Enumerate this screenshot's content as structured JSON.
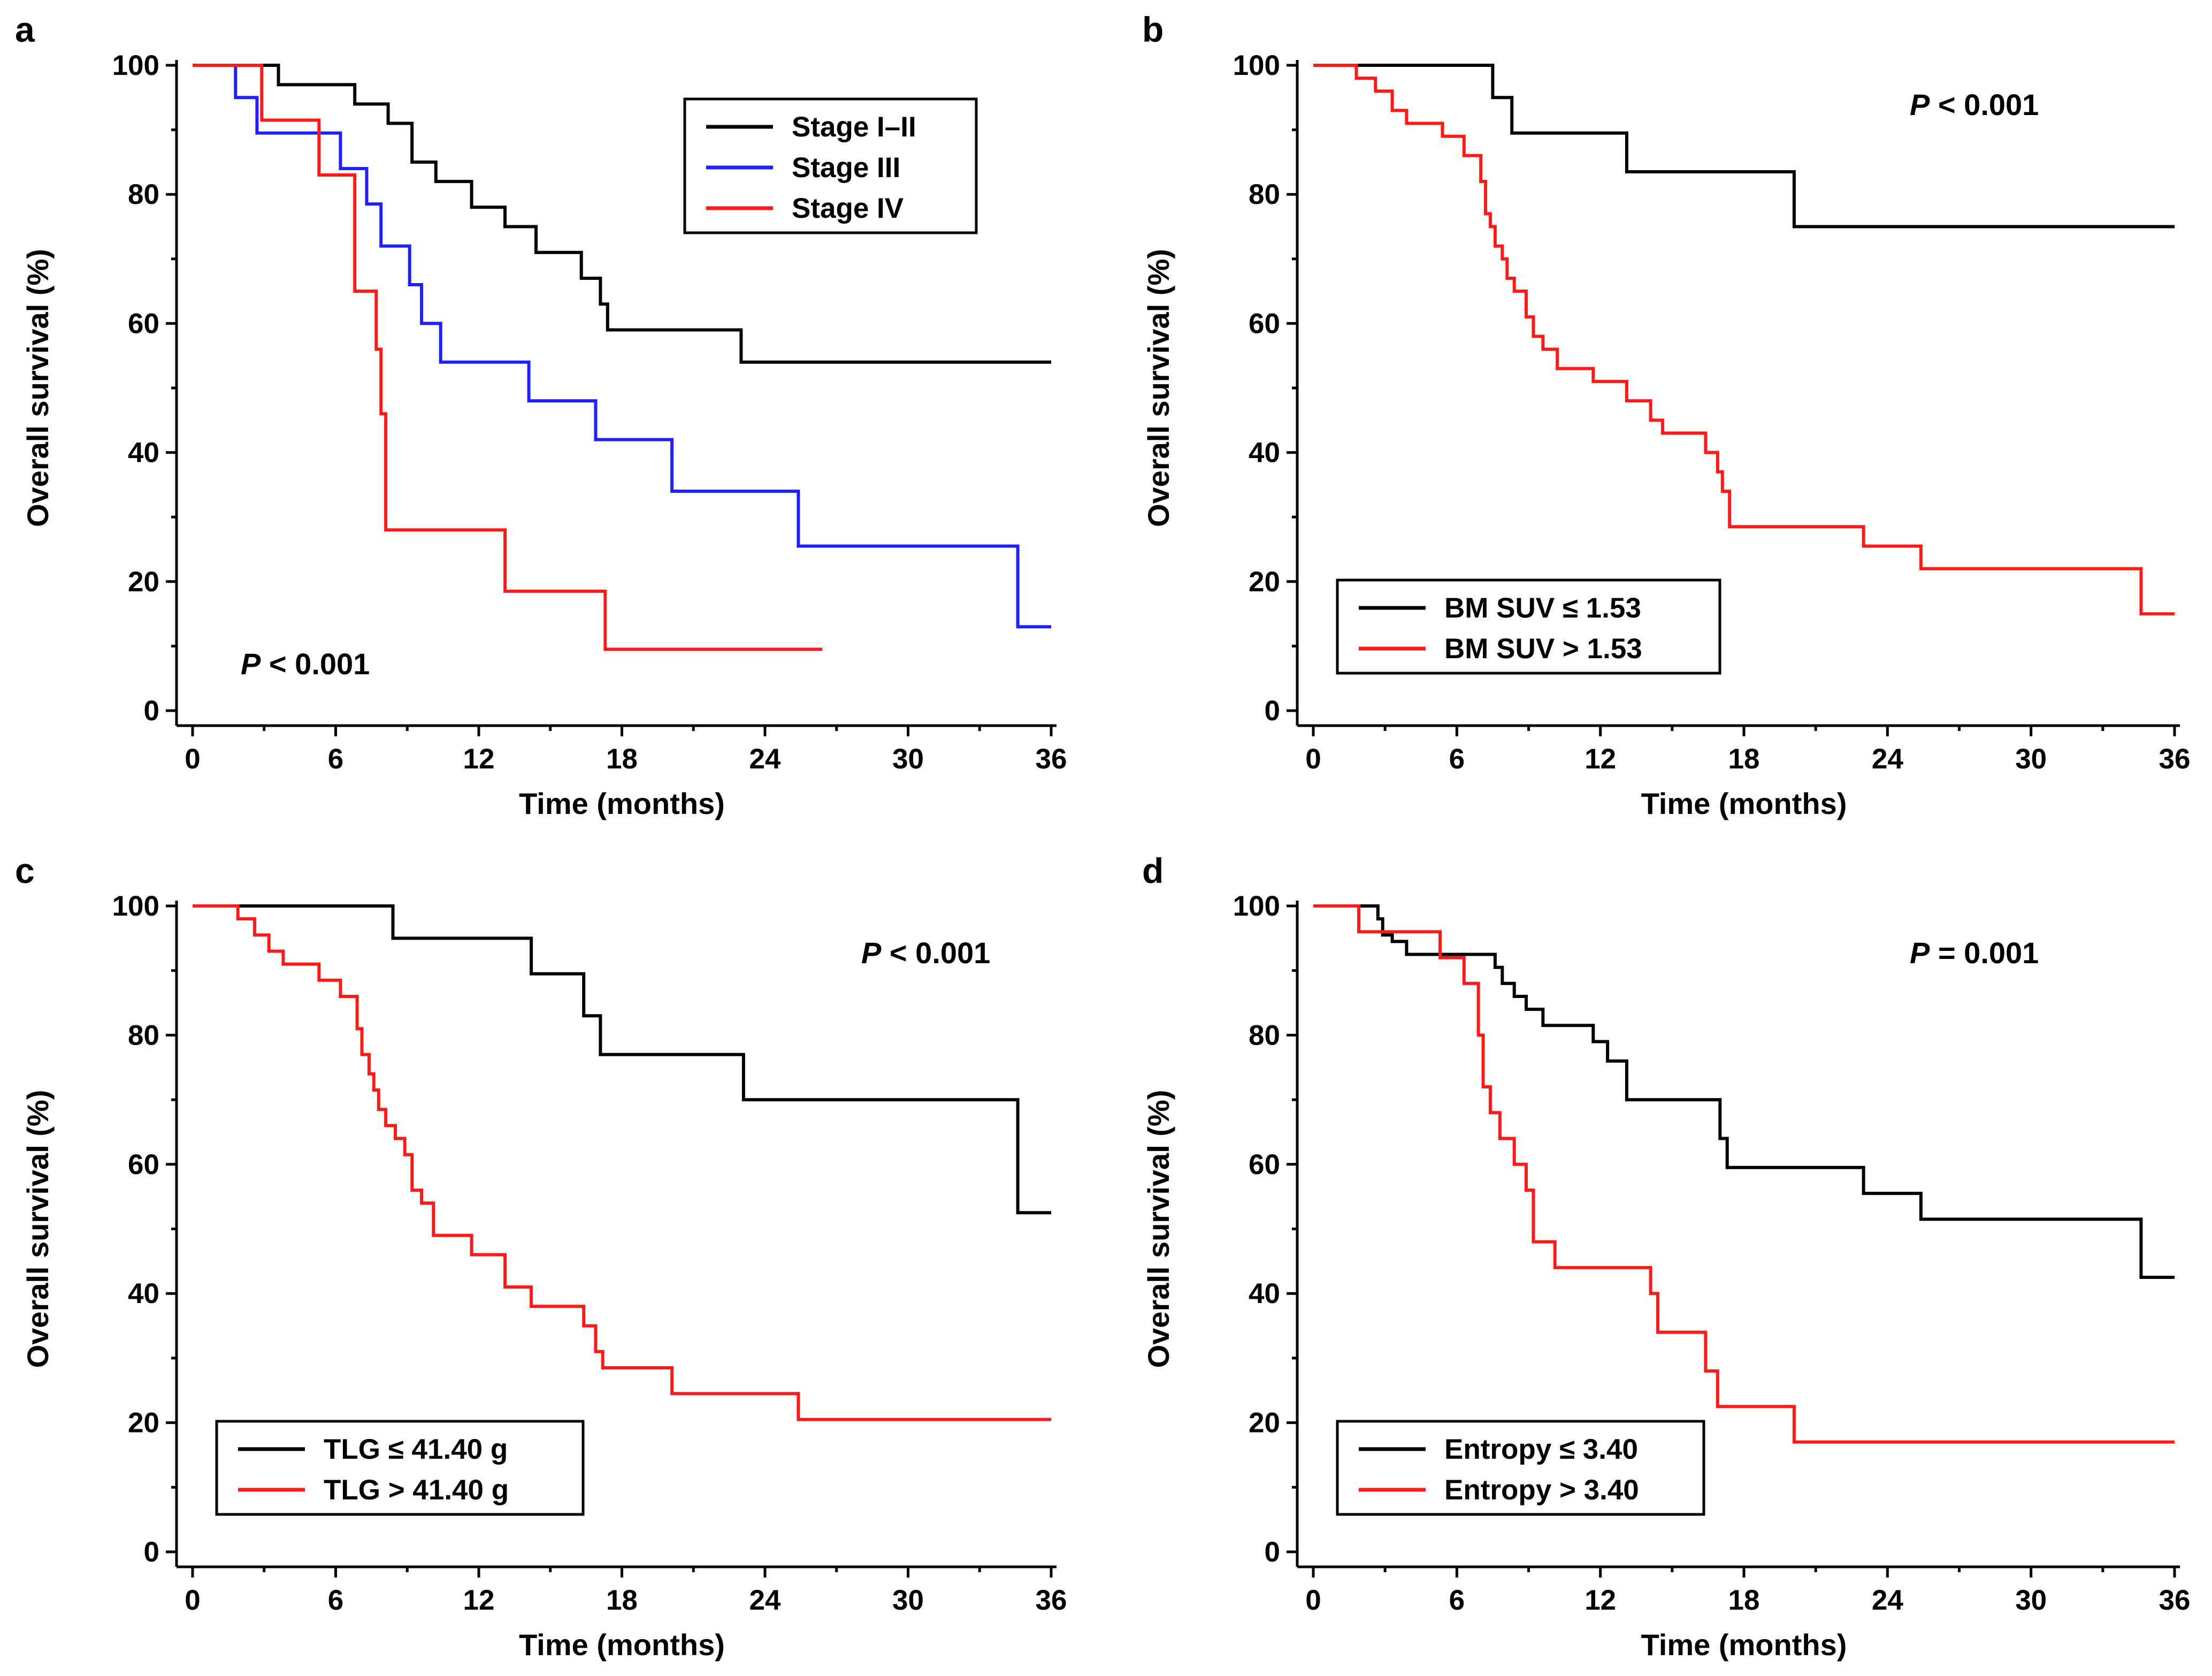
{
  "colors": {
    "black": "#000000",
    "blue": "#1f1fff",
    "red": "#ff1a1a"
  },
  "chart_data": [
    {
      "type": "line",
      "panel": "a",
      "xlabel": "Time (months)",
      "ylabel": "Overall survival (%)",
      "xlim": [
        0,
        36
      ],
      "ylim": [
        0,
        100
      ],
      "xticks": [
        0,
        6,
        12,
        18,
        24,
        30,
        36
      ],
      "yticks": [
        0,
        20,
        40,
        60,
        80,
        100
      ],
      "pvalue": {
        "italic": "P",
        "rest": " < 0.001",
        "placement": "bottom-left"
      },
      "legend": {
        "placement": "top-right"
      },
      "series": [
        {
          "name": "Stage I–II",
          "color": "#000000",
          "x": [
            0,
            3.6,
            6.8,
            8.2,
            9.2,
            10.2,
            11.7,
            13.1,
            14.4,
            16.3,
            17.1,
            17.4,
            23.0,
            36.0
          ],
          "y": [
            100,
            97,
            94,
            91,
            85,
            82,
            78,
            75,
            71,
            67,
            63,
            59,
            54,
            54
          ]
        },
        {
          "name": "Stage III",
          "color": "#1f1fff",
          "x": [
            0,
            1.8,
            2.7,
            6.2,
            7.3,
            7.9,
            9.1,
            9.6,
            10.4,
            14.1,
            16.9,
            20.1,
            25.4,
            34.6,
            36.0
          ],
          "y": [
            100,
            95,
            89.5,
            84,
            78.5,
            72,
            66,
            60,
            54,
            48,
            42,
            34,
            25.5,
            13,
            13
          ]
        },
        {
          "name": "Stage IV",
          "color": "#ff1a1a",
          "x": [
            0,
            2.9,
            5.3,
            6.8,
            7.7,
            7.9,
            8.1,
            13.1,
            17.3,
            26.4
          ],
          "y": [
            100,
            91.5,
            83,
            65,
            56,
            46,
            28,
            18.5,
            9.5,
            9.5
          ]
        }
      ]
    },
    {
      "type": "line",
      "panel": "b",
      "xlabel": "Time (months)",
      "ylabel": "Overall survival (%)",
      "xlim": [
        0,
        36
      ],
      "ylim": [
        0,
        100
      ],
      "xticks": [
        0,
        6,
        12,
        18,
        24,
        30,
        36
      ],
      "yticks": [
        0,
        20,
        40,
        60,
        80,
        100
      ],
      "pvalue": {
        "italic": "P",
        "rest": " < 0.001",
        "placement": "top-right"
      },
      "legend": {
        "placement": "bottom-left"
      },
      "series": [
        {
          "name": "BM SUV ≤ 1.53",
          "color": "#000000",
          "x": [
            0,
            7.5,
            8.3,
            13.1,
            20.1,
            36.0
          ],
          "y": [
            100,
            95,
            89.5,
            83.5,
            75,
            75
          ]
        },
        {
          "name": "BM SUV > 1.53",
          "color": "#ff1a1a",
          "x": [
            0,
            1.8,
            2.6,
            3.3,
            3.9,
            5.4,
            6.3,
            7.0,
            7.2,
            7.4,
            7.6,
            7.9,
            8.1,
            8.4,
            8.9,
            9.2,
            9.6,
            10.2,
            11.7,
            13.1,
            14.1,
            14.6,
            16.4,
            16.9,
            17.1,
            17.4,
            23.0,
            25.4,
            34.6,
            36.0
          ],
          "y": [
            100,
            98,
            96,
            93,
            91,
            89,
            86,
            82,
            77,
            75,
            72,
            70,
            67,
            65,
            61,
            58,
            56,
            53,
            51,
            48,
            45,
            43,
            40,
            37,
            34,
            28.5,
            25.5,
            22,
            15,
            15
          ]
        }
      ]
    },
    {
      "type": "line",
      "panel": "c",
      "xlabel": "Time (months)",
      "ylabel": "Overall survival (%)",
      "xlim": [
        0,
        36
      ],
      "ylim": [
        0,
        100
      ],
      "xticks": [
        0,
        6,
        12,
        18,
        24,
        30,
        36
      ],
      "yticks": [
        0,
        20,
        40,
        60,
        80,
        100
      ],
      "pvalue": {
        "italic": "P",
        "rest": " < 0.001",
        "placement": "top-right"
      },
      "legend": {
        "placement": "bottom-left"
      },
      "series": [
        {
          "name": "TLG ≤ 41.40 g",
          "color": "#000000",
          "x": [
            0,
            8.4,
            14.2,
            16.4,
            17.1,
            23.1,
            34.6,
            36.0
          ],
          "y": [
            100,
            95,
            89.5,
            83,
            77,
            70,
            52.5,
            52.5
          ]
        },
        {
          "name": "TLG > 41.40 g",
          "color": "#ff1a1a",
          "x": [
            0,
            1.9,
            2.6,
            3.2,
            3.8,
            5.3,
            6.2,
            6.9,
            7.1,
            7.4,
            7.6,
            7.8,
            8.1,
            8.5,
            8.9,
            9.2,
            9.6,
            10.1,
            11.7,
            13.1,
            14.2,
            16.4,
            16.9,
            17.2,
            20.1,
            25.4,
            36.0
          ],
          "y": [
            100,
            98,
            95.5,
            93,
            91,
            88.5,
            86,
            81,
            77,
            74,
            71.5,
            68.5,
            66,
            64,
            61.5,
            56,
            54,
            49,
            46,
            41,
            38,
            35,
            31,
            28.5,
            24.5,
            20.5,
            20.5
          ]
        }
      ]
    },
    {
      "type": "line",
      "panel": "d",
      "xlabel": "Time (months)",
      "ylabel": "Overall survival (%)",
      "xlim": [
        0,
        36
      ],
      "ylim": [
        0,
        100
      ],
      "xticks": [
        0,
        6,
        12,
        18,
        24,
        30,
        36
      ],
      "yticks": [
        0,
        20,
        40,
        60,
        80,
        100
      ],
      "pvalue": {
        "italic": "P",
        "rest": " = 0.001",
        "placement": "top-right"
      },
      "legend": {
        "placement": "bottom-left"
      },
      "series": [
        {
          "name": "Entropy ≤ 3.40",
          "color": "#000000",
          "x": [
            0,
            2.7,
            2.9,
            3.3,
            3.9,
            7.6,
            7.9,
            8.4,
            8.9,
            9.6,
            11.7,
            12.3,
            13.1,
            17.0,
            17.3,
            23.0,
            25.4,
            34.6,
            36.0
          ],
          "y": [
            100,
            98,
            95.5,
            94.5,
            92.5,
            90.5,
            88,
            86,
            84,
            81.5,
            79,
            76,
            70,
            64,
            59.5,
            55.5,
            51.5,
            42.5,
            42.5
          ]
        },
        {
          "name": "Entropy > 3.40",
          "color": "#ff1a1a",
          "x": [
            0,
            1.9,
            5.3,
            6.3,
            6.9,
            7.1,
            7.4,
            7.8,
            8.4,
            8.9,
            9.2,
            10.1,
            14.1,
            14.4,
            16.4,
            16.9,
            20.1,
            36.0
          ],
          "y": [
            100,
            96,
            92,
            88,
            80,
            72,
            68,
            64,
            60,
            56,
            48,
            44,
            40,
            34,
            28,
            22.5,
            17,
            17
          ]
        }
      ]
    }
  ]
}
